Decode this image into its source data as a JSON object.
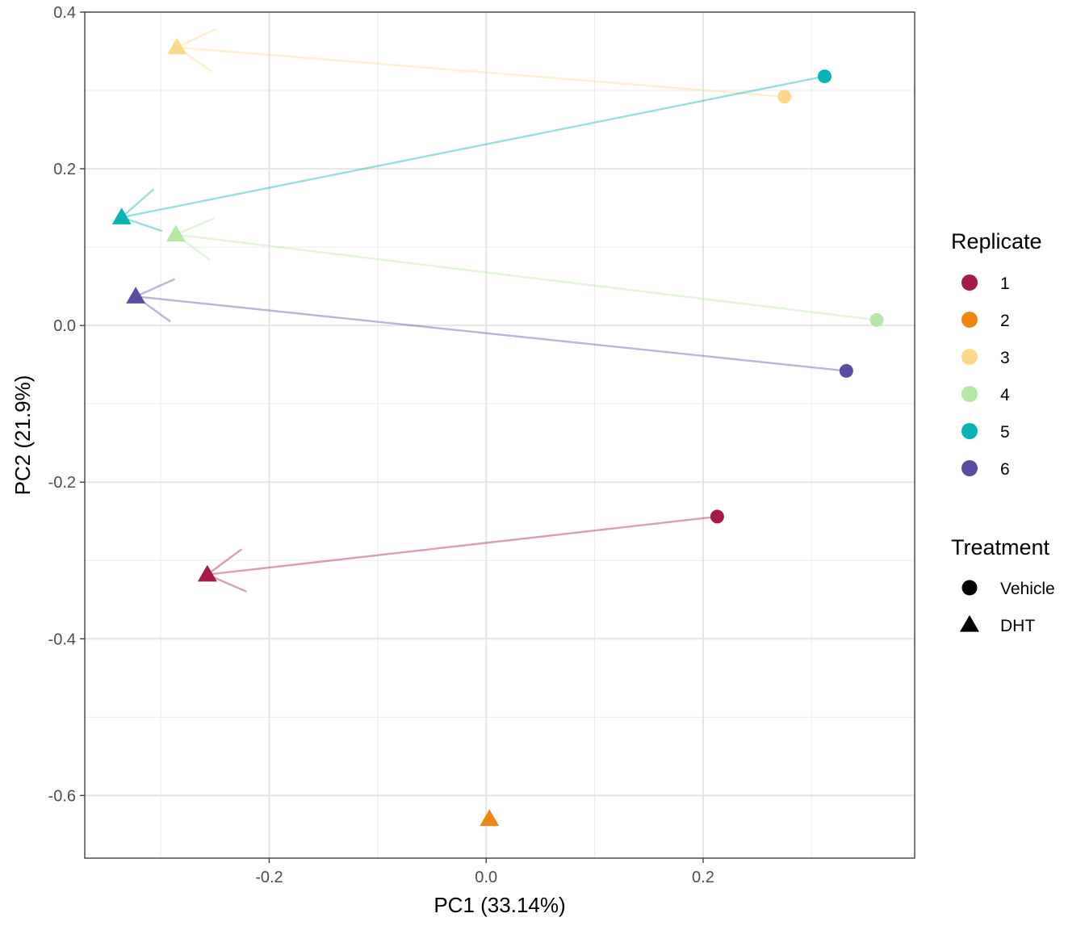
{
  "chart_data": {
    "type": "scatter",
    "xlabel": "PC1 (33.14%)",
    "ylabel": "PC2 (21.9%)",
    "xlim": [
      -0.37,
      0.395
    ],
    "ylim": [
      -0.68,
      0.4
    ],
    "x_ticks": [
      -0.2,
      0.0,
      0.2
    ],
    "x_tick_labels": [
      "-0.2",
      "0.0",
      "0.2"
    ],
    "y_ticks": [
      0.4,
      0.2,
      0.0,
      -0.2,
      -0.4,
      -0.6
    ],
    "y_tick_labels": [
      "0.4",
      "0.2",
      "0.0",
      "-0.2",
      "-0.4",
      "-0.6"
    ],
    "grid": true,
    "legend_placement": "right",
    "replicate_legend": {
      "title": "Replicate",
      "entries": [
        {
          "label": "1",
          "color": "#A6194B"
        },
        {
          "label": "2",
          "color": "#EE8610"
        },
        {
          "label": "3",
          "color": "#FCD98A"
        },
        {
          "label": "4",
          "color": "#B5E8A4"
        },
        {
          "label": "5",
          "color": "#08B3B5"
        },
        {
          "label": "6",
          "color": "#5A4DA1"
        }
      ]
    },
    "treatment_legend": {
      "title": "Treatment",
      "entries": [
        {
          "label": "Vehicle",
          "shape": "circle"
        },
        {
          "label": "DHT",
          "shape": "triangle"
        }
      ]
    },
    "points": [
      {
        "replicate": "1",
        "treatment": "Vehicle",
        "x": 0.213,
        "y": -0.244
      },
      {
        "replicate": "1",
        "treatment": "DHT",
        "x": -0.257,
        "y": -0.318
      },
      {
        "replicate": "2",
        "treatment": "DHT",
        "x": 0.003,
        "y": -0.63
      },
      {
        "replicate": "3",
        "treatment": "Vehicle",
        "x": 0.275,
        "y": 0.292
      },
      {
        "replicate": "3",
        "treatment": "DHT",
        "x": -0.285,
        "y": 0.355
      },
      {
        "replicate": "4",
        "treatment": "Vehicle",
        "x": 0.36,
        "y": 0.007
      },
      {
        "replicate": "4",
        "treatment": "DHT",
        "x": -0.286,
        "y": 0.116
      },
      {
        "replicate": "5",
        "treatment": "Vehicle",
        "x": 0.312,
        "y": 0.318
      },
      {
        "replicate": "5",
        "treatment": "DHT",
        "x": -0.336,
        "y": 0.138
      },
      {
        "replicate": "6",
        "treatment": "Vehicle",
        "x": 0.332,
        "y": -0.058
      },
      {
        "replicate": "6",
        "treatment": "DHT",
        "x": -0.323,
        "y": 0.037
      }
    ],
    "arrows": [
      {
        "replicate": "1",
        "from": [
          0.213,
          -0.244
        ],
        "to": [
          -0.257,
          -0.318
        ]
      },
      {
        "replicate": "3",
        "from": [
          0.275,
          0.292
        ],
        "to": [
          -0.285,
          0.355
        ]
      },
      {
        "replicate": "4",
        "from": [
          0.36,
          0.007
        ],
        "to": [
          -0.286,
          0.116
        ]
      },
      {
        "replicate": "5",
        "from": [
          0.312,
          0.318
        ],
        "to": [
          -0.336,
          0.138
        ]
      },
      {
        "replicate": "6",
        "from": [
          0.332,
          -0.058
        ],
        "to": [
          -0.323,
          0.037
        ]
      }
    ]
  }
}
